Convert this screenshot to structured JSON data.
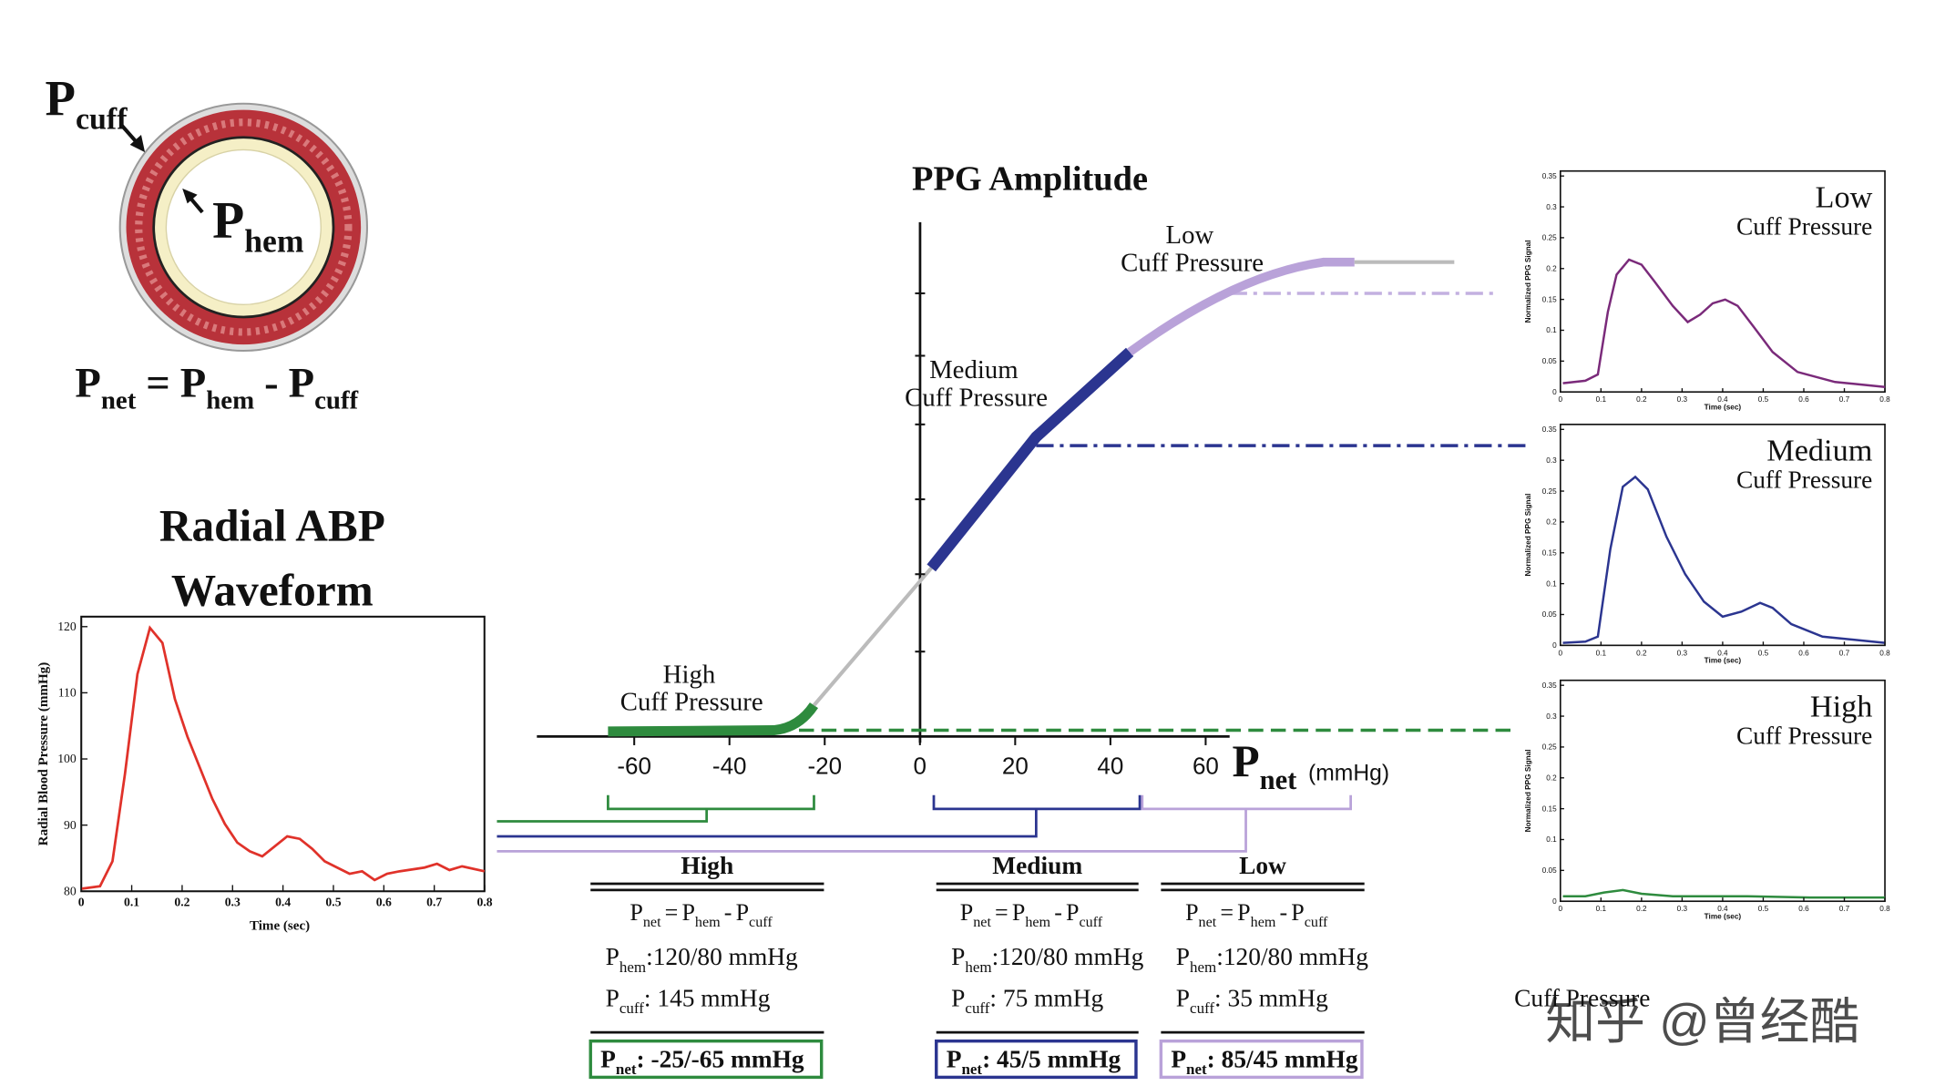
{
  "vessel": {
    "cuff_label": {
      "p": "P",
      "sub": "cuff"
    },
    "hem_label": {
      "p": "P",
      "sub": "hem"
    },
    "equation": {
      "lhs": {
        "p": "P",
        "sub": "net"
      },
      "eq": "=",
      "a": {
        "p": "P",
        "sub": "hem"
      },
      "minus": "-",
      "b": {
        "p": "P",
        "sub": "cuff"
      }
    }
  },
  "abp": {
    "title_lines": [
      "Radial ABP",
      "Waveform"
    ],
    "ylabel": "Radial Blood Pressure (mmHg)",
    "xlabel": "Time (sec)",
    "yticks": [
      "80",
      "90",
      "100",
      "110",
      "120"
    ],
    "xticks": [
      "0",
      "0.1",
      "0.2",
      "0.3",
      "0.4",
      "0.5",
      "0.6",
      "0.7",
      "0.8"
    ]
  },
  "ppg": {
    "title": "PPG Amplitude",
    "xticks": [
      "-60",
      "-40",
      "-20",
      "0",
      "20",
      "40",
      "60"
    ],
    "xlabel": {
      "p": "P",
      "sub": "net",
      "unit": "(mmHg)"
    },
    "annotations": {
      "low": [
        "Low",
        "Cuff Pressure"
      ],
      "medium": [
        "Medium",
        "Cuff Pressure"
      ],
      "high": [
        "High",
        "Cuff Pressure"
      ]
    }
  },
  "panel_axes": {
    "ylabel": "Normalized PPG Signal",
    "xlabel": "Time (sec)",
    "yticks": [
      "0",
      "0.05",
      "0.1",
      "0.15",
      "0.2",
      "0.25",
      "0.3",
      "0.35"
    ],
    "xticks": [
      "0",
      "0.1",
      "0.2",
      "0.3",
      "0.4",
      "0.5",
      "0.6",
      "0.7",
      "0.8"
    ]
  },
  "panels": [
    {
      "title_lines": [
        "Low",
        "Cuff Pressure"
      ]
    },
    {
      "title_lines": [
        "Medium",
        "Cuff Pressure"
      ]
    },
    {
      "title_lines": [
        "High",
        "Cuff Pressure"
      ]
    }
  ],
  "case_formula": {
    "lhs": {
      "p": "P",
      "sub": "net"
    },
    "eq": "=",
    "a": {
      "p": "P",
      "sub": "hem"
    },
    "minus": "-",
    "b": {
      "p": "P",
      "sub": "cuff"
    }
  },
  "cases": [
    {
      "name": "High",
      "hem": {
        "p": "P",
        "sub": "hem",
        "value": ":120/80 mmHg"
      },
      "cuff": {
        "p": "P",
        "sub": "cuff",
        "value": ": 145 mmHg"
      },
      "net": {
        "p": "P",
        "sub": "net",
        "value": ": -25/-65 mmHg"
      }
    },
    {
      "name": "Medium",
      "hem": {
        "p": "P",
        "sub": "hem",
        "value": ":120/80 mmHg"
      },
      "cuff": {
        "p": "P",
        "sub": "cuff",
        "value": ": 75 mmHg"
      },
      "net": {
        "p": "P",
        "sub": "net",
        "value": ": 45/5 mmHg"
      }
    },
    {
      "name": "Low",
      "hem": {
        "p": "P",
        "sub": "hem",
        "value": ":120/80 mmHg"
      },
      "cuff": {
        "p": "P",
        "sub": "cuff",
        "value": ": 35 mmHg"
      },
      "net": {
        "p": "P",
        "sub": "net",
        "value": ": 85/45 mmHg"
      }
    }
  ],
  "footer": {
    "caption": "Cuff Pressure",
    "watermark": "知乎 @曾经酷"
  }
}
